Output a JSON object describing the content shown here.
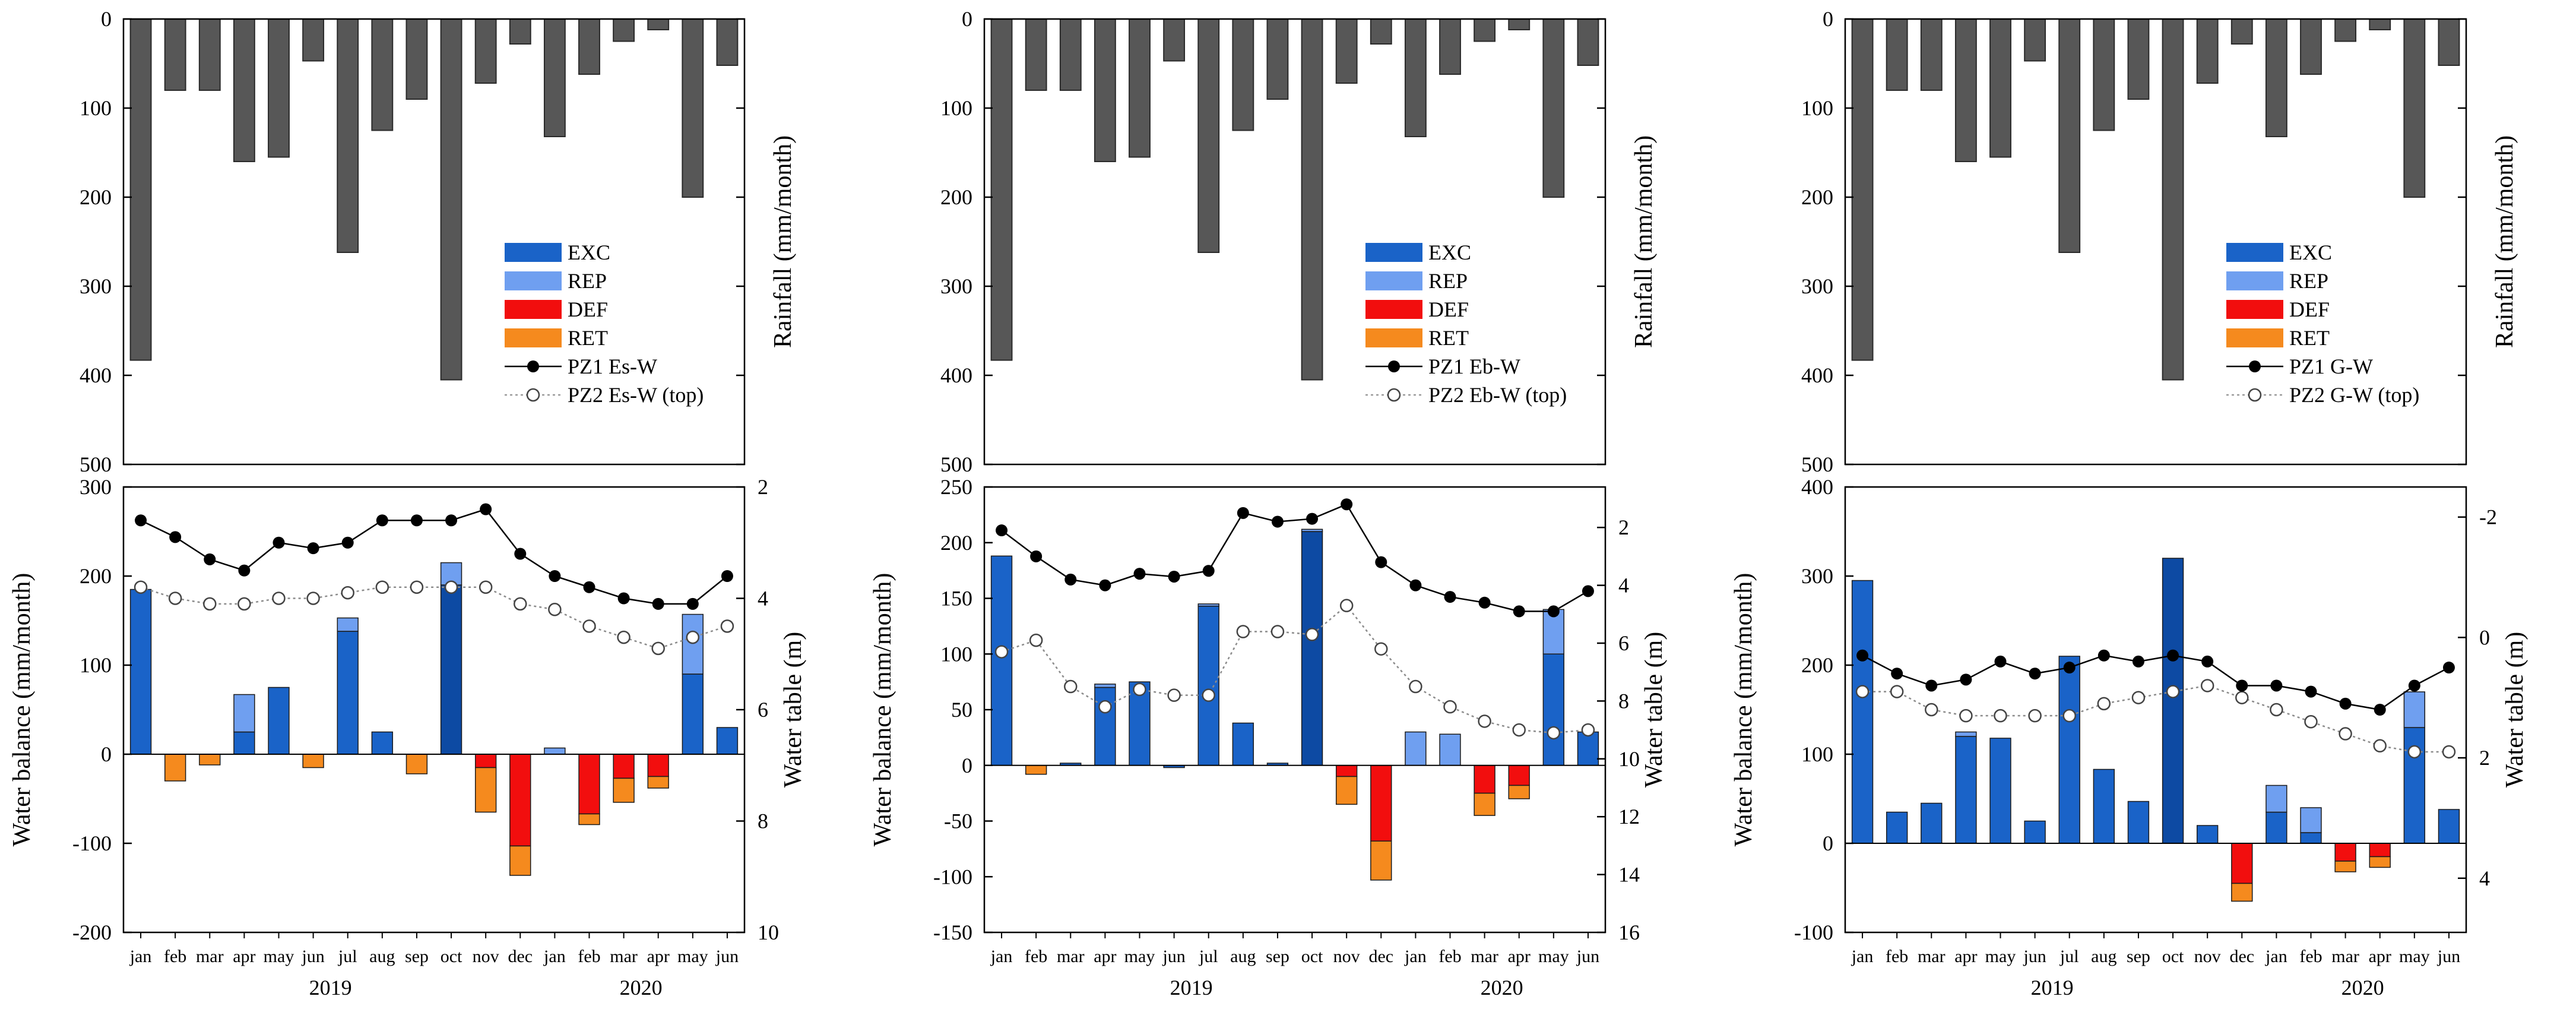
{
  "chart_data": {
    "type": "bar",
    "months": [
      "jan",
      "feb",
      "mar",
      "apr",
      "may",
      "jun",
      "jul",
      "aug",
      "sep",
      "oct",
      "nov",
      "dec",
      "jan",
      "feb",
      "mar",
      "apr",
      "may",
      "jun"
    ],
    "years": [
      "2019",
      "2020"
    ],
    "rainfall": {
      "ylabel": "Rainfall (mm/month)",
      "ylim": [
        0,
        500
      ],
      "ticks": [
        "0",
        "100",
        "200",
        "300",
        "400",
        "500"
      ],
      "values": [
        383,
        80,
        80,
        160,
        155,
        47,
        262,
        125,
        90,
        405,
        72,
        28,
        132,
        62,
        25,
        12,
        200,
        52
      ]
    },
    "legend": [
      {
        "name": "EXC",
        "color": "#1a63c8"
      },
      {
        "name": "REP",
        "color": "#6f9ff0"
      },
      {
        "name": "DEF",
        "color": "#f20e0e"
      },
      {
        "name": "RET",
        "color": "#f58a1e"
      }
    ],
    "colors": {
      "exc": "#1a63c8",
      "exc_dark": "#0d4aa3",
      "rep": "#6f9ff0",
      "def": "#f20e0e",
      "ret": "#f58a1e",
      "rain": "#575757"
    },
    "panels": [
      {
        "line1_label": "PZ1 Es-W",
        "line2_label": "PZ2 Es-W (top)",
        "ylabel": "Water balance (mm/month)",
        "y2label": "Water table (m)",
        "ylim": [
          -200,
          300
        ],
        "yticks": [
          "-200",
          "-100",
          "0",
          "100",
          "200",
          "300"
        ],
        "y2lim": [
          10,
          2
        ],
        "y2ticks": [
          "2",
          "4",
          "6",
          "8",
          "10"
        ],
        "exc": [
          185,
          0,
          0,
          25,
          75,
          0,
          138,
          25,
          0,
          190,
          0,
          0,
          0,
          0,
          0,
          0,
          90,
          30
        ],
        "rep": [
          0,
          0,
          0,
          42,
          0,
          0,
          15,
          0,
          0,
          25,
          0,
          0,
          7,
          0,
          0,
          0,
          67,
          0
        ],
        "def": [
          0,
          0,
          0,
          0,
          0,
          0,
          0,
          0,
          0,
          0,
          -15,
          -103,
          0,
          -67,
          -27,
          -25,
          0,
          0
        ],
        "ret": [
          0,
          -30,
          -12,
          0,
          0,
          -15,
          0,
          0,
          -22,
          0,
          -50,
          -33,
          0,
          -12,
          -27,
          -13,
          0,
          0
        ],
        "pz1": [
          2.6,
          2.9,
          3.3,
          3.5,
          3.0,
          3.1,
          3.0,
          2.6,
          2.6,
          2.6,
          2.4,
          3.2,
          3.6,
          3.8,
          4.0,
          4.1,
          4.1,
          3.6
        ],
        "pz2": [
          3.8,
          4.0,
          4.1,
          4.1,
          4.0,
          4.0,
          3.9,
          3.8,
          3.8,
          3.8,
          3.8,
          4.1,
          4.2,
          4.5,
          4.7,
          4.9,
          4.7,
          4.5
        ]
      },
      {
        "line1_label": "PZ1 Eb-W",
        "line2_label": "PZ2 Eb-W (top)",
        "ylabel": "Water balance (mm/month)",
        "y2label": "Water table (m)",
        "ylim": [
          -150,
          250
        ],
        "yticks": [
          "-150",
          "-100",
          "-50",
          "0",
          "50",
          "100",
          "150",
          "200",
          "250"
        ],
        "y2lim": [
          16,
          0.6
        ],
        "y2ticks": [
          "2",
          "4",
          "6",
          "8",
          "10",
          "12",
          "14",
          "16"
        ],
        "exc": [
          188,
          0,
          2,
          70,
          75,
          -2,
          143,
          38,
          2,
          210,
          0,
          0,
          0,
          0,
          0,
          0,
          100,
          30
        ],
        "rep": [
          0,
          0,
          0,
          3,
          0,
          0,
          2,
          0,
          0,
          2,
          0,
          0,
          30,
          28,
          0,
          0,
          40,
          0
        ],
        "def": [
          0,
          0,
          0,
          0,
          0,
          0,
          0,
          0,
          0,
          0,
          -10,
          -68,
          0,
          0,
          -25,
          -18,
          0,
          0
        ],
        "ret": [
          0,
          -8,
          0,
          0,
          0,
          0,
          0,
          0,
          0,
          0,
          -25,
          -35,
          0,
          0,
          -20,
          -12,
          0,
          0
        ],
        "pz1": [
          2.1,
          3.0,
          3.8,
          4.0,
          3.6,
          3.7,
          3.5,
          1.5,
          1.8,
          1.7,
          1.2,
          3.2,
          4.0,
          4.4,
          4.6,
          4.9,
          4.9,
          4.2
        ],
        "pz2": [
          6.3,
          5.9,
          7.5,
          8.2,
          7.6,
          7.8,
          7.8,
          5.6,
          5.6,
          5.7,
          4.7,
          6.2,
          7.5,
          8.2,
          8.7,
          9.0,
          9.1,
          9.0
        ]
      },
      {
        "line1_label": "PZ1 G-W",
        "line2_label": "PZ2 G-W (top)",
        "ylabel": "Water balance (mm/month)",
        "y2label": "Water table (m)",
        "ylim": [
          -100,
          400
        ],
        "yticks": [
          "-100",
          "0",
          "100",
          "200",
          "300",
          "400"
        ],
        "y2lim": [
          4.9,
          -2.5
        ],
        "y2ticks": [
          "-2",
          "0",
          "2",
          "4"
        ],
        "exc": [
          295,
          35,
          45,
          120,
          118,
          25,
          210,
          83,
          47,
          320,
          20,
          0,
          35,
          12,
          0,
          0,
          130,
          38
        ],
        "rep": [
          0,
          0,
          0,
          5,
          0,
          0,
          0,
          0,
          0,
          0,
          0,
          0,
          30,
          28,
          0,
          0,
          40,
          0
        ],
        "def": [
          0,
          0,
          0,
          0,
          0,
          0,
          0,
          0,
          0,
          0,
          0,
          -45,
          0,
          0,
          -20,
          -15,
          0,
          0
        ],
        "ret": [
          0,
          0,
          0,
          0,
          0,
          0,
          0,
          0,
          0,
          0,
          0,
          -20,
          0,
          0,
          -12,
          -12,
          0,
          0
        ],
        "pz1": [
          0.3,
          0.6,
          0.8,
          0.7,
          0.4,
          0.6,
          0.5,
          0.3,
          0.4,
          0.3,
          0.4,
          0.8,
          0.8,
          0.9,
          1.1,
          1.2,
          0.8,
          0.5
        ],
        "pz2": [
          0.9,
          0.9,
          1.2,
          1.3,
          1.3,
          1.3,
          1.3,
          1.1,
          1.0,
          0.9,
          0.8,
          1.0,
          1.2,
          1.4,
          1.6,
          1.8,
          1.9,
          1.9
        ]
      }
    ]
  }
}
